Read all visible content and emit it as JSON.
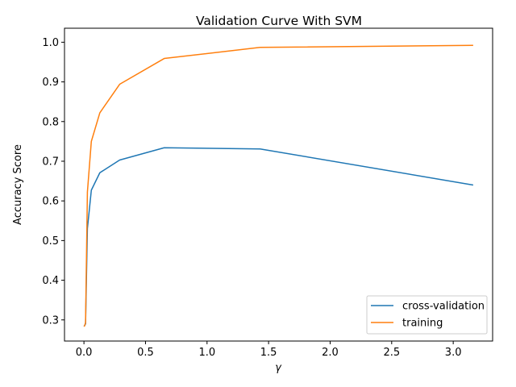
{
  "chart_data": {
    "type": "line",
    "title": "Validation Curve With SVM",
    "xlabel": "γ",
    "ylabel": "Accuracy Score",
    "xlim": [
      -0.158,
      3.32
    ],
    "ylim": [
      0.2467,
      1.0353
    ],
    "xticks": [
      0.0,
      0.5,
      1.0,
      1.5,
      2.0,
      2.5,
      3.0
    ],
    "xtick_labels": [
      "0.0",
      "0.5",
      "1.0",
      "1.5",
      "2.0",
      "2.5",
      "3.0"
    ],
    "yticks": [
      0.3,
      0.4,
      0.5,
      0.6,
      0.7,
      0.8,
      0.9,
      1.0
    ],
    "ytick_labels": [
      "0.3",
      "0.4",
      "0.5",
      "0.6",
      "0.7",
      "0.8",
      "0.9",
      "1.0"
    ],
    "grid": false,
    "legend_position": "lower-right",
    "x": [
      0.001,
      0.00215,
      0.00464,
      0.01,
      0.0215,
      0.0464,
      0.1,
      0.215,
      0.464,
      1.0,
      2.154,
      3.162
    ],
    "series": [
      {
        "name": "cross-validation",
        "color": "#1f77b4",
        "x": [
          0.001,
          0.003,
          0.006,
          0.013,
          0.028,
          0.06,
          0.129,
          0.29,
          0.652,
          1.431,
          3.162
        ],
        "values": [
          0.284,
          0.285,
          0.286,
          0.29,
          0.53,
          0.627,
          0.671,
          0.703,
          0.734,
          0.731,
          0.64
        ]
      },
      {
        "name": "training",
        "color": "#ff7f0e",
        "x": [
          0.001,
          0.003,
          0.006,
          0.013,
          0.028,
          0.06,
          0.129,
          0.29,
          0.652,
          1.431,
          3.162
        ],
        "values": [
          0.283,
          0.284,
          0.286,
          0.293,
          0.622,
          0.75,
          0.822,
          0.894,
          0.959,
          0.987,
          0.992
        ]
      }
    ]
  }
}
